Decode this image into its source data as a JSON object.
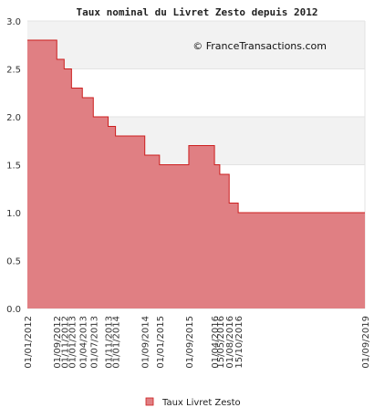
{
  "chart_data": {
    "type": "area",
    "title": "Taux nominal du Livret Zesto depuis 2012",
    "watermark": "© FranceTransactions.com",
    "xlabel": "",
    "ylabel": "",
    "ylim": [
      0,
      3.0
    ],
    "y_ticks": [
      "0.0",
      "0.5",
      "1.0",
      "1.5",
      "2.0",
      "2.5",
      "3.0"
    ],
    "x_range": [
      "2012-01-01",
      "2019-09-01"
    ],
    "grid": "horizontal bands",
    "legend_position": "bottom",
    "colors": {
      "fill": "#e07f83",
      "line": "#cc1f1f",
      "band": "#f2f2f2"
    },
    "series": [
      {
        "name": "Taux Livret Zesto",
        "points": [
          {
            "date": "2012-01-01",
            "value": 2.8
          },
          {
            "date": "2012-09-01",
            "value": 2.6
          },
          {
            "date": "2012-11-01",
            "value": 2.5
          },
          {
            "date": "2013-01-01",
            "value": 2.3
          },
          {
            "date": "2013-04-01",
            "value": 2.2
          },
          {
            "date": "2013-07-01",
            "value": 2.0
          },
          {
            "date": "2013-11-01",
            "value": 1.9
          },
          {
            "date": "2014-01-01",
            "value": 1.8
          },
          {
            "date": "2014-09-01",
            "value": 1.6
          },
          {
            "date": "2015-01-01",
            "value": 1.5
          },
          {
            "date": "2015-09-01",
            "value": 1.7
          },
          {
            "date": "2016-04-01",
            "value": 1.5
          },
          {
            "date": "2016-05-15",
            "value": 1.4
          },
          {
            "date": "2016-08-01",
            "value": 1.1
          },
          {
            "date": "2016-10-15",
            "value": 1.0
          },
          {
            "date": "2019-09-01",
            "value": 1.0
          }
        ]
      }
    ],
    "x_tick_labels": [
      {
        "date": "2012-01-01",
        "label": "01/01/2012"
      },
      {
        "date": "2012-09-01",
        "label": "01/09/2012"
      },
      {
        "date": "2012-11-01",
        "label": "01/11/2012"
      },
      {
        "date": "2013-01-01",
        "label": "01/01/2013"
      },
      {
        "date": "2013-04-01",
        "label": "01/04/2013"
      },
      {
        "date": "2013-07-01",
        "label": "01/07/2013"
      },
      {
        "date": "2013-11-01",
        "label": "01/11/2013"
      },
      {
        "date": "2014-01-01",
        "label": "01/01/2014"
      },
      {
        "date": "2014-09-01",
        "label": "01/09/2014"
      },
      {
        "date": "2015-01-01",
        "label": "01/01/2015"
      },
      {
        "date": "2015-09-01",
        "label": "01/09/2015"
      },
      {
        "date": "2016-04-01",
        "label": "01/04/2016"
      },
      {
        "date": "2016-05-15",
        "label": "15/05/2016"
      },
      {
        "date": "2016-08-01",
        "label": "01/08/2016"
      },
      {
        "date": "2016-10-15",
        "label": "15/10/2016"
      },
      {
        "date": "2019-09-01",
        "label": "01/09/2019"
      }
    ]
  }
}
